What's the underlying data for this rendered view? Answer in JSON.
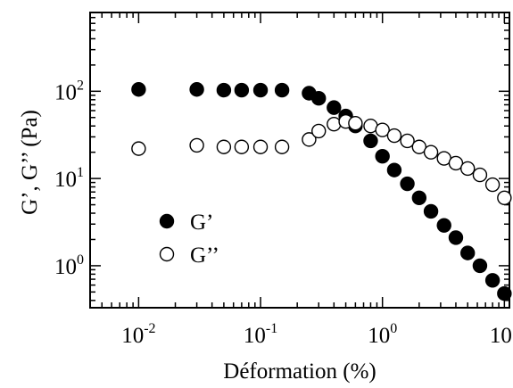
{
  "chart_data": {
    "type": "scatter",
    "title": "",
    "xlabel": "Déformation (%)",
    "ylabel": "G’, G’’ (Pa)",
    "xscale": "log",
    "yscale": "log",
    "xlim": [
      0.004,
      11
    ],
    "ylim": [
      0.33,
      800
    ],
    "x_ticks": [
      {
        "value": 0.01,
        "base": "10",
        "exp": "-2"
      },
      {
        "value": 0.1,
        "base": "10",
        "exp": "-1"
      },
      {
        "value": 1,
        "base": "10",
        "exp": "0"
      },
      {
        "value": 10,
        "base": "10",
        "exp": "1"
      }
    ],
    "y_ticks": [
      {
        "value": 1,
        "base": "10",
        "exp": "0"
      },
      {
        "value": 10,
        "base": "10",
        "exp": "1"
      },
      {
        "value": 100,
        "base": "10",
        "exp": "2"
      }
    ],
    "grid": false,
    "legend_position": "lower-left",
    "series": [
      {
        "name": "G’",
        "marker": "filled-circle",
        "color": "#000000",
        "x": [
          0.01,
          0.03,
          0.05,
          0.07,
          0.1,
          0.15,
          0.25,
          0.3,
          0.4,
          0.5,
          0.6,
          0.8,
          1.0,
          1.25,
          1.6,
          2.0,
          2.5,
          3.2,
          4.0,
          5.0,
          6.3,
          8.0,
          10.0
        ],
        "y": [
          105,
          105,
          103,
          103,
          103,
          103,
          95,
          83,
          65,
          52,
          40,
          27,
          18,
          12.5,
          8.7,
          6.0,
          4.2,
          2.9,
          2.1,
          1.4,
          1.0,
          0.68,
          0.48
        ]
      },
      {
        "name": "G’’",
        "marker": "open-circle",
        "color": "#000000",
        "x": [
          0.01,
          0.03,
          0.05,
          0.07,
          0.1,
          0.15,
          0.25,
          0.3,
          0.4,
          0.5,
          0.6,
          0.8,
          1.0,
          1.25,
          1.6,
          2.0,
          2.5,
          3.2,
          4.0,
          5.0,
          6.3,
          8.0,
          10.0
        ],
        "y": [
          22,
          24,
          23,
          23,
          23,
          23,
          28,
          35,
          42,
          45,
          43,
          40,
          36,
          31,
          27,
          23,
          20,
          17,
          15,
          13,
          11,
          8.5,
          6.0
        ]
      }
    ]
  }
}
